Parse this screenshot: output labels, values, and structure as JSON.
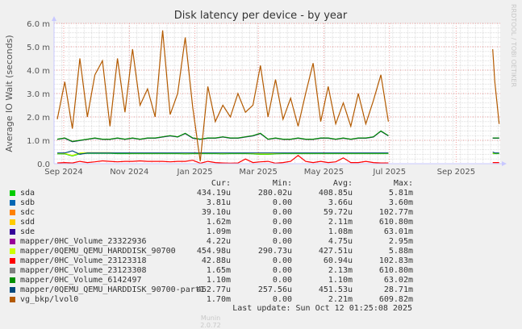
{
  "chart_data": {
    "type": "line",
    "title": "Disk latency per device - by year",
    "ylabel": "Average IO Wait (seconds)",
    "xlabel": "",
    "ylim": [
      0,
      6.0
    ],
    "y_unit": "m",
    "yticks": [
      "0.0",
      "1.0 m",
      "2.0 m",
      "3.0 m",
      "4.0 m",
      "5.0 m",
      "6.0 m"
    ],
    "xlim": [
      "2024-08-23",
      "2025-10-12"
    ],
    "xticks": [
      {
        "date": "2024-09-01",
        "label": "Sep 2024"
      },
      {
        "date": "2024-11-01",
        "label": "Nov 2024"
      },
      {
        "date": "2025-01-01",
        "label": "Jan 2025"
      },
      {
        "date": "2025-03-01",
        "label": "Mar 2025"
      },
      {
        "date": "2025-05-01",
        "label": "May 2025"
      },
      {
        "date": "2025-07-01",
        "label": "Jul 2025"
      },
      {
        "date": "2025-09-01",
        "label": "Sep 2025"
      }
    ],
    "grid": true,
    "side_text": "RRDTOOL / TOBI OETIKER",
    "x": [
      "2024-08-26",
      "2024-09-02",
      "2024-09-09",
      "2024-09-16",
      "2024-09-23",
      "2024-09-30",
      "2024-10-07",
      "2024-10-14",
      "2024-10-21",
      "2024-10-28",
      "2024-11-04",
      "2024-11-11",
      "2024-11-18",
      "2024-11-25",
      "2024-12-02",
      "2024-12-09",
      "2024-12-16",
      "2024-12-23",
      "2024-12-30",
      "2025-01-06",
      "2025-01-13",
      "2025-01-20",
      "2025-01-27",
      "2025-02-03",
      "2025-02-10",
      "2025-02-17",
      "2025-02-24",
      "2025-03-03",
      "2025-03-10",
      "2025-03-17",
      "2025-03-24",
      "2025-03-31",
      "2025-04-07",
      "2025-04-14",
      "2025-04-21",
      "2025-04-28",
      "2025-05-05",
      "2025-05-12",
      "2025-05-19",
      "2025-05-26",
      "2025-06-02",
      "2025-06-09",
      "2025-06-16",
      "2025-06-23",
      "2025-06-30",
      "2025-08-01",
      "2025-10-05",
      "2025-10-07",
      "2025-10-09",
      "2025-10-11"
    ],
    "series": [
      {
        "name": "sda",
        "color": "#00cc00",
        "values": [
          0.42,
          0.42,
          0.33,
          0.43,
          0.44,
          0.44,
          0.44,
          0.44,
          0.43,
          0.43,
          0.43,
          0.43,
          0.43,
          0.43,
          0.43,
          0.43,
          0.43,
          0.42,
          0.43,
          0.43,
          0.43,
          0.43,
          0.42,
          0.43,
          0.43,
          0.43,
          0.42,
          0.4,
          0.4,
          0.42,
          0.43,
          0.43,
          0.43,
          0.43,
          0.43,
          0.43,
          0.43,
          0.43,
          0.43,
          0.43,
          0.43,
          0.43,
          0.43,
          0.43,
          0.43,
          null,
          0.43,
          0.43,
          0.43,
          0.43
        ]
      },
      {
        "name": "mapper/0QEMU_QEMU_HARDDISK_90700",
        "color": "#ccff00",
        "values": [
          0.44,
          0.44,
          0.35,
          0.46,
          0.47,
          0.47,
          0.47,
          0.47,
          0.46,
          0.46,
          0.45,
          0.45,
          0.45,
          0.45,
          0.45,
          0.45,
          0.45,
          0.44,
          0.45,
          0.45,
          0.45,
          0.45,
          0.44,
          0.45,
          0.45,
          0.45,
          0.44,
          0.42,
          0.42,
          0.44,
          0.45,
          0.45,
          0.45,
          0.45,
          0.45,
          0.45,
          0.45,
          0.45,
          0.45,
          0.45,
          0.45,
          0.45,
          0.45,
          0.45,
          0.45,
          null,
          0.45,
          0.45,
          0.45,
          0.45
        ]
      },
      {
        "name": "mapper/0QEMU_QEMU_HARDDISK_90700-part1",
        "color": "#00487d",
        "values": [
          0.46,
          0.46,
          0.55,
          0.4,
          0.46,
          0.46,
          0.46,
          0.46,
          0.46,
          0.46,
          0.46,
          0.46,
          0.46,
          0.46,
          0.46,
          0.46,
          0.46,
          0.46,
          0.46,
          0.46,
          0.46,
          0.46,
          0.46,
          0.46,
          0.46,
          0.46,
          0.46,
          0.46,
          0.46,
          0.46,
          0.46,
          0.46,
          0.46,
          0.46,
          0.46,
          0.46,
          0.46,
          0.46,
          0.46,
          0.46,
          0.46,
          0.46,
          0.46,
          0.46,
          0.46,
          null,
          0.5,
          0.46,
          0.46,
          0.46
        ]
      },
      {
        "name": "mapper/0HC_Volume_23123318",
        "color": "#ff0000",
        "values": [
          0.03,
          0.05,
          0.03,
          0.1,
          0.05,
          0.08,
          0.12,
          0.1,
          0.08,
          0.1,
          0.1,
          0.12,
          0.1,
          0.1,
          0.1,
          0.08,
          0.1,
          0.1,
          0.15,
          0.02,
          0.1,
          0.05,
          0.03,
          0.02,
          0.03,
          0.2,
          0.05,
          0.08,
          0.1,
          0.02,
          0.05,
          0.1,
          0.35,
          0.1,
          0.05,
          0.1,
          0.05,
          0.08,
          0.25,
          0.05,
          0.05,
          0.1,
          0.05,
          0.03,
          0.03,
          null,
          0.05,
          0.05,
          0.05,
          0.05
        ]
      },
      {
        "name": "sde",
        "color": "#330099",
        "values": [
          1.04,
          1.09,
          0.94,
          0.99,
          1.04,
          1.09,
          1.04,
          1.04,
          1.09,
          1.04,
          1.09,
          1.04,
          1.09,
          1.09,
          1.14,
          1.19,
          1.14,
          1.29,
          1.09,
          1.04,
          1.09,
          1.09,
          1.14,
          1.09,
          1.09,
          1.14,
          1.19,
          1.29,
          1.04,
          1.09,
          1.04,
          1.04,
          1.09,
          1.04,
          1.04,
          1.09,
          1.09,
          1.04,
          1.09,
          1.04,
          1.09,
          1.09,
          1.14,
          1.39,
          1.19,
          null,
          1.09,
          1.09,
          1.09,
          1.09
        ]
      },
      {
        "name": "mapper/0HC_Volume_6142497",
        "color": "#008f00",
        "values": [
          1.05,
          1.1,
          0.95,
          1.0,
          1.05,
          1.1,
          1.05,
          1.05,
          1.1,
          1.05,
          1.1,
          1.05,
          1.1,
          1.1,
          1.15,
          1.2,
          1.15,
          1.3,
          1.1,
          1.05,
          1.1,
          1.1,
          1.15,
          1.1,
          1.1,
          1.15,
          1.2,
          1.3,
          1.05,
          1.1,
          1.05,
          1.05,
          1.1,
          1.05,
          1.05,
          1.1,
          1.1,
          1.05,
          1.1,
          1.05,
          1.1,
          1.1,
          1.15,
          1.4,
          1.2,
          null,
          1.1,
          1.1,
          1.1,
          1.1
        ]
      },
      {
        "name": "vg_bkp/lvol0",
        "color": "#b35a00",
        "values": [
          1.9,
          3.5,
          1.5,
          4.5,
          2.0,
          3.8,
          4.4,
          1.6,
          4.5,
          2.2,
          4.9,
          2.5,
          3.2,
          2.0,
          5.7,
          2.1,
          3.0,
          5.4,
          2.4,
          0.1,
          3.3,
          1.8,
          2.5,
          2.0,
          3.0,
          2.2,
          2.5,
          4.2,
          2.0,
          3.6,
          1.9,
          2.8,
          1.6,
          3.0,
          4.3,
          1.8,
          3.3,
          1.7,
          2.6,
          1.6,
          3.0,
          1.7,
          2.7,
          3.8,
          1.8,
          null,
          4.9,
          3.5,
          2.6,
          1.7
        ]
      }
    ]
  },
  "legend": {
    "headers": {
      "cur": "Cur:",
      "min": "Min:",
      "avg": "Avg:",
      "max": "Max:"
    },
    "rows": [
      {
        "name": "sda",
        "color": "#00cc00",
        "cur": "434.19u",
        "min": "280.02u",
        "avg": "408.85u",
        "max": "5.81m"
      },
      {
        "name": "sdb",
        "color": "#0066b3",
        "cur": "3.81u",
        "min": "0.00",
        "avg": "3.66u",
        "max": "3.60m"
      },
      {
        "name": "sdc",
        "color": "#ff8000",
        "cur": "39.10u",
        "min": "0.00",
        "avg": "59.72u",
        "max": "102.77m"
      },
      {
        "name": "sdd",
        "color": "#ffcc00",
        "cur": "1.62m",
        "min": "0.00",
        "avg": "2.11m",
        "max": "610.80m"
      },
      {
        "name": "sde",
        "color": "#330099",
        "cur": "1.09m",
        "min": "0.00",
        "avg": "1.08m",
        "max": "63.01m"
      },
      {
        "name": "mapper/0HC_Volume_23322936",
        "color": "#990099",
        "cur": "4.22u",
        "min": "0.00",
        "avg": "4.75u",
        "max": "2.95m"
      },
      {
        "name": "mapper/0QEMU_QEMU_HARDDISK_90700",
        "color": "#ccff00",
        "cur": "454.98u",
        "min": "290.73u",
        "avg": "427.51u",
        "max": "5.88m"
      },
      {
        "name": "mapper/0HC_Volume_23123318",
        "color": "#ff0000",
        "cur": "42.88u",
        "min": "0.00",
        "avg": "60.94u",
        "max": "102.83m"
      },
      {
        "name": "mapper/0HC_Volume_23123308",
        "color": "#808080",
        "cur": "1.65m",
        "min": "0.00",
        "avg": "2.13m",
        "max": "610.80m"
      },
      {
        "name": "mapper/0HC_Volume_6142497",
        "color": "#008f00",
        "cur": "1.10m",
        "min": "0.00",
        "avg": "1.10m",
        "max": "63.02m"
      },
      {
        "name": "mapper/0QEMU_QEMU_HARDDISK_90700-part1",
        "color": "#00487d",
        "cur": "462.77u",
        "min": "257.56u",
        "avg": "451.53u",
        "max": "28.71m"
      },
      {
        "name": "vg_bkp/lvol0",
        "color": "#b35a00",
        "cur": "1.70m",
        "min": "0.00",
        "avg": "2.21m",
        "max": "609.82m"
      }
    ],
    "last_update": "Last update: Sun Oct 12 01:25:08 2025"
  },
  "footer": {
    "version": "Munin 2.0.72"
  }
}
